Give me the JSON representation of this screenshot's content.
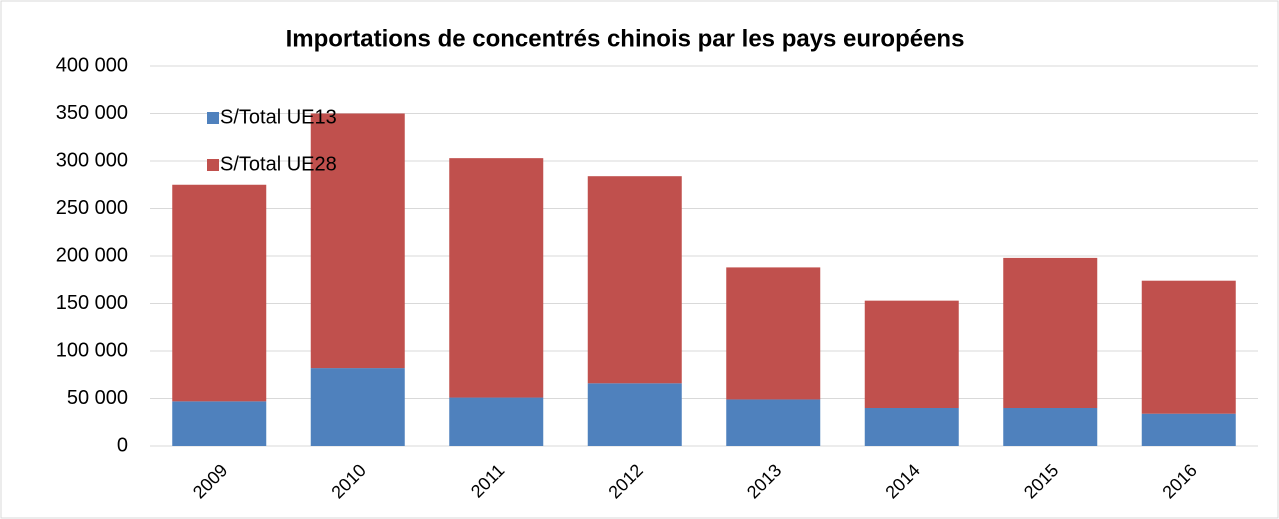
{
  "chart_data": {
    "type": "stacked_bar",
    "title": "Importations de concentrés chinois par les pays européens",
    "categories": [
      "2009",
      "2010",
      "2011",
      "2012",
      "2013",
      "2014",
      "2015",
      "2016"
    ],
    "series": [
      {
        "name": "S/Total UE13",
        "color": "#4f81bd",
        "values": [
          47000,
          82000,
          51000,
          66000,
          49000,
          40000,
          40000,
          34000
        ]
      },
      {
        "name": "S/Total UE28",
        "color": "#c0504d",
        "values": [
          228000,
          268000,
          252000,
          218000,
          139000,
          113000,
          158000,
          140000
        ]
      }
    ],
    "ylim": [
      0,
      400000
    ],
    "yticks": [
      0,
      {
        "value": 50000,
        "label": "50 000"
      },
      {
        "value": 100000,
        "label": "100 000"
      },
      {
        "value": 150000,
        "label": "150 000"
      },
      {
        "value": 200000,
        "label": "200 000"
      },
      {
        "value": 250000,
        "label": "250 000"
      },
      {
        "value": 300000,
        "label": "300 000"
      },
      {
        "value": 350000,
        "label": "350 000"
      },
      {
        "value": 400000,
        "label": "400 000"
      }
    ],
    "grid": true,
    "legend": "upper left"
  }
}
